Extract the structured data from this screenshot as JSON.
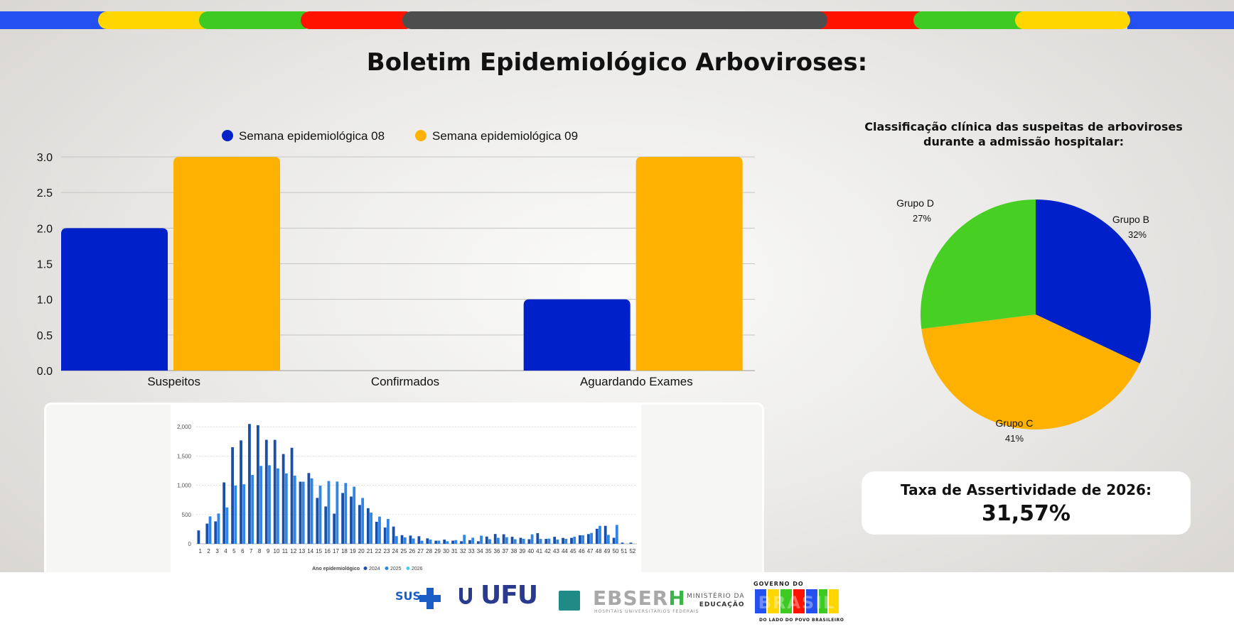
{
  "header": {
    "title": "Boletim Epidemiológico Arboviroses:",
    "stripe_colors": [
      "#2450f0",
      "#ffd600",
      "#3fc923",
      "#ff1200",
      "#4d4d4d",
      "#ff1200",
      "#3fc923",
      "#ffd600",
      "#2450f0"
    ]
  },
  "chart_data": [
    {
      "type": "bar",
      "categories": [
        "Suspeitos",
        "Confirmados",
        "Aguardando Exames"
      ],
      "series": [
        {
          "name": "Semana epidemiológica 08",
          "color": "#0021c9",
          "values": [
            2,
            0,
            1
          ]
        },
        {
          "name": "Semana epidemiológica 09",
          "color": "#ffb102",
          "values": [
            3,
            0,
            3
          ]
        }
      ],
      "ylim": [
        0,
        3
      ],
      "yticks": [
        "0.0",
        "0.5",
        "1.0",
        "1.5",
        "2.0",
        "2.5",
        "3.0"
      ],
      "legend": "top-center",
      "grid": true
    },
    {
      "type": "pie",
      "title": "Classificação clínica das suspeitas de arboviroses durante a admissão hospitalar:",
      "slices": [
        {
          "label": "Grupo B",
          "percent_label": "32%",
          "value": 32,
          "color": "#0021c9"
        },
        {
          "label": "Grupo C",
          "percent_label": "41%",
          "value": 41,
          "color": "#ffb102"
        },
        {
          "label": "Grupo D",
          "percent_label": "27%",
          "value": 27,
          "color": "#47d023"
        }
      ]
    },
    {
      "type": "bar",
      "xlabel": "Ano epidemiológico",
      "yticks": [
        "0",
        "500",
        "1,000",
        "1,500",
        "2,000"
      ],
      "ylim": [
        0,
        2100
      ],
      "categories": [
        "1",
        "2",
        "3",
        "4",
        "5",
        "6",
        "7",
        "8",
        "9",
        "10",
        "11",
        "12",
        "13",
        "14",
        "15",
        "16",
        "17",
        "18",
        "19",
        "20",
        "21",
        "22",
        "23",
        "24",
        "25",
        "26",
        "27",
        "28",
        "29",
        "30",
        "31",
        "32",
        "33",
        "34",
        "35",
        "36",
        "37",
        "38",
        "39",
        "40",
        "41",
        "42",
        "43",
        "44",
        "45",
        "46",
        "47",
        "48",
        "49",
        "50",
        "51",
        "52"
      ],
      "series": [
        {
          "name": "2024",
          "color": "#1a4fa8",
          "values": [
            229,
            345,
            384,
            1050,
            1652,
            1768,
            2049,
            2028,
            1778,
            1777,
            1535,
            1642,
            1062,
            1210,
            785,
            638,
            516,
            869,
            808,
            664,
            609,
            377,
            278,
            295,
            148,
            141,
            130,
            93,
            53,
            72,
            54,
            44,
            63,
            44,
            124,
            168,
            163,
            120,
            103,
            78,
            182,
            84,
            120,
            101,
            102,
            146,
            166,
            257,
            307,
            103,
            20,
            20
          ]
        },
        {
          "name": "2025",
          "color": "#2f86e6",
          "values": [
            0,
            469,
            518,
            622,
            997,
            1018,
            1177,
            1332,
            1343,
            1290,
            1204,
            1166,
            1062,
            1119,
            994,
            1074,
            1064,
            1040,
            977,
            784,
            534,
            466,
            425,
            131,
            110,
            91,
            53,
            72,
            54,
            44,
            63,
            154,
            105,
            139,
            79,
            103,
            112,
            78,
            86,
            162,
            84,
            89,
            73,
            85,
            122,
            146,
            186,
            307,
            153,
            323,
            0,
            0
          ]
        },
        {
          "name": "2026",
          "color": "#3fd0f0",
          "values": [
            0,
            0,
            0,
            0,
            0,
            0,
            0,
            0,
            0,
            0,
            0,
            0,
            0,
            0,
            0,
            0,
            0,
            0,
            0,
            0,
            0,
            0,
            0,
            0,
            0,
            0,
            0,
            0,
            0,
            0,
            0,
            0,
            0,
            0,
            0,
            0,
            0,
            0,
            0,
            0,
            0,
            0,
            0,
            0,
            0,
            0,
            0,
            0,
            0,
            0,
            0,
            0
          ]
        }
      ],
      "legend_title": "Ano epidemiológico",
      "legend_items": [
        "2024",
        "2025",
        "2026"
      ]
    }
  ],
  "rate_card": {
    "label": "Taxa de Assertividade de 2026:",
    "value": "31,57%"
  },
  "footer": {
    "logos": {
      "sus": "SUS",
      "ufu": "UFU",
      "ebserh_prefix": "EBSER",
      "ebserh_suffix": "H",
      "ebserh_sub": "HOSPITAIS UNIVERSITÁRIOS FEDERAIS",
      "mec_line1": "MINISTÉRIO DA",
      "mec_line2": "EDUCAÇÃO",
      "gov_top": "GOVERNO DO",
      "gov_word": "BRASIL",
      "gov_bottom": "DO LADO DO POVO BRASILEIRO"
    }
  }
}
